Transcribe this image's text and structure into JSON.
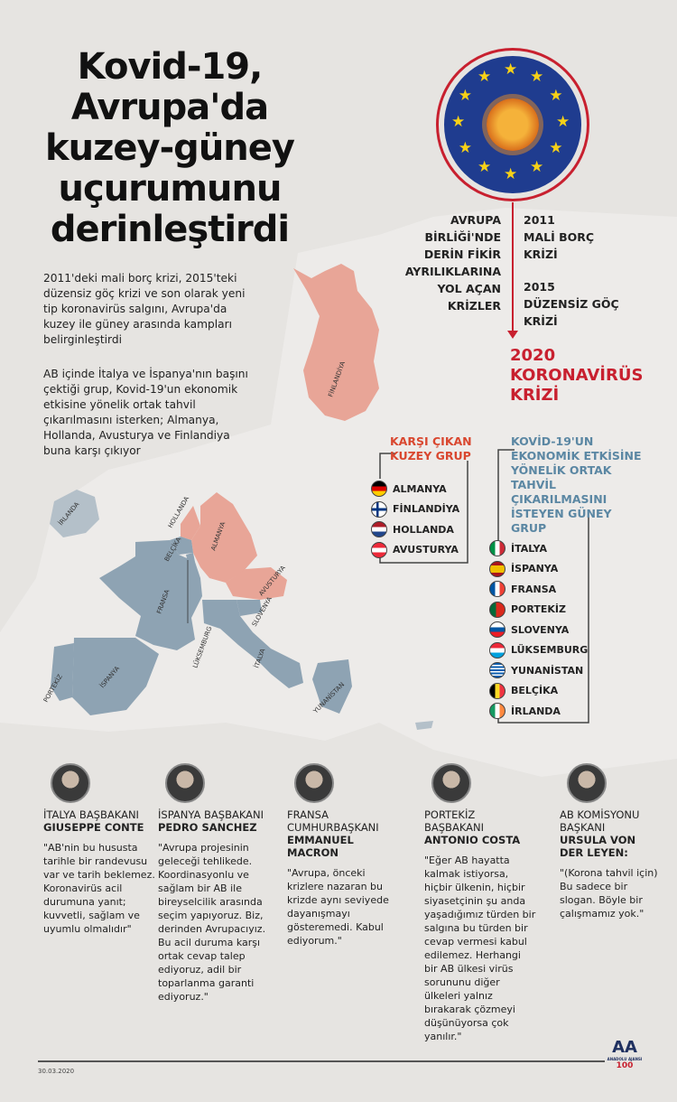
{
  "title": "Kovid-19, Avrupa'da kuzey-güney uçurumunu derinleştirdi",
  "intro": [
    "2011'deki mali borç krizi, 2015'teki düzensiz göç krizi ve son olarak yeni tip koronavirüs salgını, Avrupa'da kuzey ile güney arasında kampları belirginleştirdi",
    "AB içinde İtalya ve İspanya'nın başını çektiği grup, Kovid-19'un ekonomik etkisine yönelik ortak tahvil çıkarılmasını isterken; Almanya, Hollanda, Avusturya ve Finlandiya buna karşı çıkıyor"
  ],
  "timeline": {
    "label": "AVRUPA BİRLİĞİ'NDE DERİN FİKİR AYRILIKLARINA YOL AÇAN KRİZLER",
    "items": [
      {
        "year": "2011",
        "text": "MALİ BORÇ KRİZİ"
      },
      {
        "year": "2015",
        "text": "DÜZENSİZ GÖÇ KRİZİ"
      }
    ],
    "final": "2020 KORONAVİRÜS KRİZİ"
  },
  "colors": {
    "accent": "#c8202f",
    "north": "#e8a597",
    "south": "#8ea3b3",
    "south_head": "#5b87a3",
    "north_head": "#d9472f",
    "eu_blue": "#1f3c8f",
    "star": "#f7d117"
  },
  "north_group": {
    "title": "KARŞI ÇIKAN KUZEY GRUP",
    "countries": [
      {
        "name": "ALMANYA",
        "flag": "germany"
      },
      {
        "name": "FİNLANDİYA",
        "flag": "finland"
      },
      {
        "name": "HOLLANDA",
        "flag": "netherlands"
      },
      {
        "name": "AVUSTURYA",
        "flag": "austria"
      }
    ]
  },
  "south_group": {
    "title": "KOVİD-19'UN EKONOMİK ETKİSİNE YÖNELİK ORTAK TAHVİL ÇIKARILMASINI İSTEYEN GÜNEY GRUP",
    "countries": [
      {
        "name": "İTALYA",
        "flag": "italy"
      },
      {
        "name": "İSPANYA",
        "flag": "spain"
      },
      {
        "name": "FRANSA",
        "flag": "france"
      },
      {
        "name": "PORTEKİZ",
        "flag": "portugal"
      },
      {
        "name": "SLOVENYA",
        "flag": "slovenia"
      },
      {
        "name": "LÜKSEMBURG",
        "flag": "luxembourg"
      },
      {
        "name": "YUNANİSTAN",
        "flag": "greece"
      },
      {
        "name": "BELÇİKA",
        "flag": "belgium"
      },
      {
        "name": "İRLANDA",
        "flag": "ireland"
      }
    ]
  },
  "map_labels": {
    "finland": "FİNLANDİYA",
    "ireland": "İRLANDA",
    "netherlands": "HOLLANDA",
    "belgium": "BELÇİKA",
    "germany": "ALMANYA",
    "austria": "AVUSTURYA",
    "france": "FRANSA",
    "slovenia": "SLOVENYA",
    "luxembourg": "LÜKSEMBURG",
    "italy": "İTALYA",
    "spain": "İSPANYA",
    "portugal": "PORTEKİZ",
    "greece": "YUNANİSTAN"
  },
  "people": [
    {
      "role": "İTALYA BAŞBAKANI",
      "name": "GIUSEPPE CONTE",
      "quote": "\"AB'nin bu hususta tarihle bir randevusu var ve tarih beklemez. Koronavirüs acil durumuna yanıt; kuvvetli, sağlam ve uyumlu olmalıdır\""
    },
    {
      "role": "İSPANYA BAŞBAKANI",
      "name": "PEDRO SANCHEZ",
      "quote": "\"Avrupa projesinin geleceği tehlikede. Koordinasyonlu ve sağlam bir AB ile bireyselcilik arasında seçim yapıyoruz. Biz, derinden Avrupacıyız. Bu acil duruma karşı ortak cevap talep ediyoruz, adil bir toparlanma garanti ediyoruz.\""
    },
    {
      "role": "FRANSA CUMHURBAŞKANI",
      "name": "EMMANUEL MACRON",
      "quote": "\"Avrupa, önceki krizlere nazaran bu krizde aynı seviyede dayanışmayı gösteremedi. Kabul ediyorum.\""
    },
    {
      "role": "PORTEKİZ BAŞBAKANI",
      "name": "ANTONIO COSTA",
      "quote": "\"Eğer AB hayatta kalmak istiyorsa, hiçbir ülkenin, hiçbir siyasetçinin şu anda yaşadığımız türden bir salgına bu türden bir cevap vermesi kabul edilemez. Herhangi bir AB ülkesi virüs sorununu diğer ülkeleri yalnız bırakarak çözmeyi düşünüyorsa çok yanılır.\""
    },
    {
      "role": "AB KOMİSYONU BAŞKANI",
      "name": "URSULA VON DER LEYEN:",
      "quote": "\"(Korona tahvil için) Bu sadece bir slogan. Böyle bir çalışmamız yok.\""
    }
  ],
  "footer": {
    "date": "30.03.2020",
    "logo": "AA ANADOLU AJANSI 100"
  }
}
